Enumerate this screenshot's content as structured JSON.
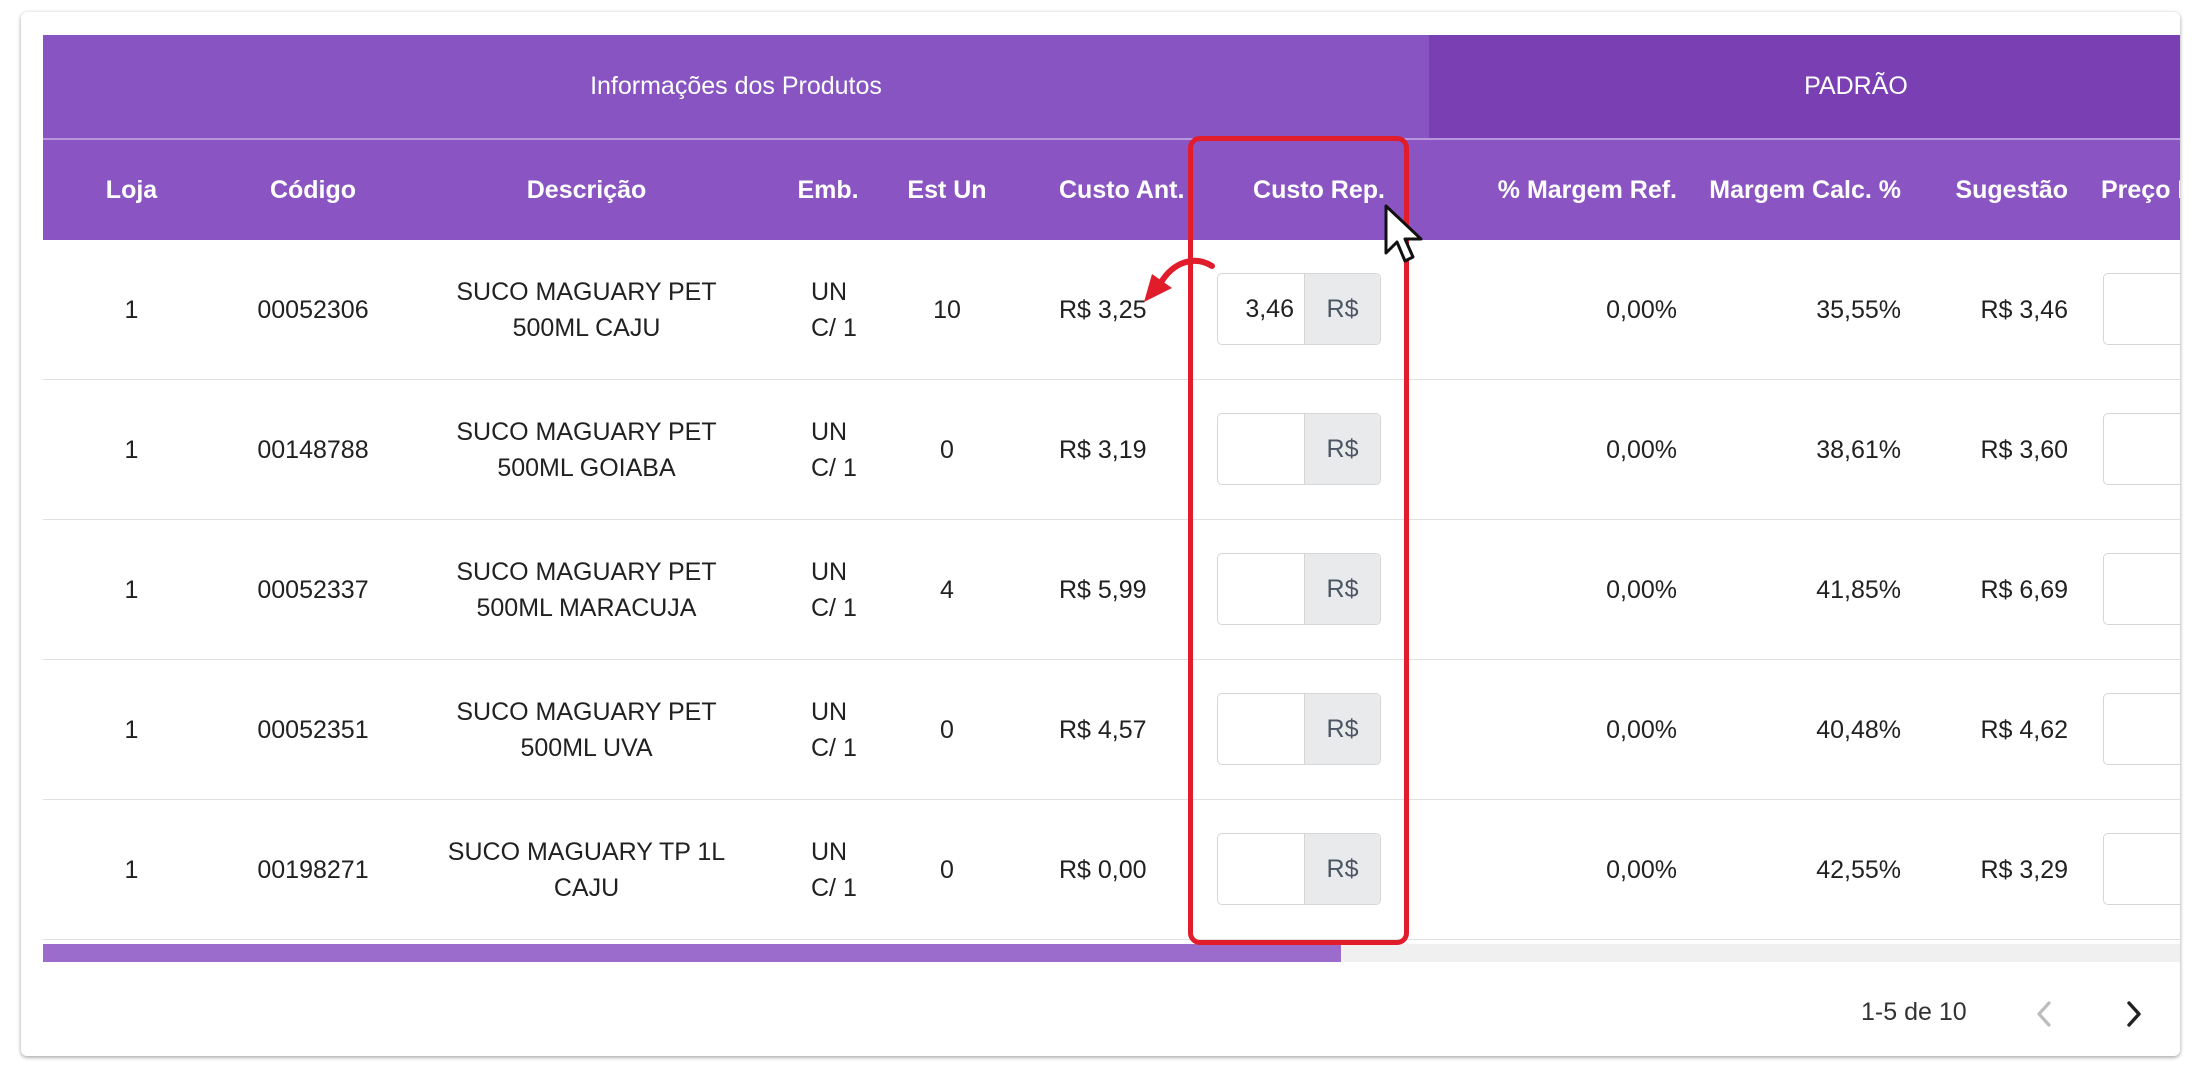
{
  "group_headers": {
    "product_info": "Informações dos Produtos",
    "padrao": "PADRÃO"
  },
  "columns": {
    "loja": "Loja",
    "codigo": "Código",
    "descricao": "Descrição",
    "emb": "Emb.",
    "est_un": "Est Un",
    "custo_ant": "Custo Ant.",
    "custo_rep": "Custo Rep.",
    "margem_ref": "% Margem Ref.",
    "margem_calc": "Margem Calc. %",
    "sugestao": "Sugestão",
    "preco": "Preço I"
  },
  "currency_addon": "R$",
  "rows": [
    {
      "loja": "1",
      "codigo": "00052306",
      "descricao_l1": "SUCO MAGUARY PET",
      "descricao_l2": "500ML CAJU",
      "emb_l1": "UN",
      "emb_l2": "C/ 1",
      "est_un": "10",
      "custo_ant": "R$ 3,25",
      "custo_rep": "3,46",
      "margem_ref": "0,00%",
      "margem_calc": "35,55%",
      "sugestao": "R$ 3,46"
    },
    {
      "loja": "1",
      "codigo": "00148788",
      "descricao_l1": "SUCO MAGUARY PET",
      "descricao_l2": "500ML GOIABA",
      "emb_l1": "UN",
      "emb_l2": "C/ 1",
      "est_un": "0",
      "custo_ant": "R$ 3,19",
      "custo_rep": "",
      "margem_ref": "0,00%",
      "margem_calc": "38,61%",
      "sugestao": "R$ 3,60"
    },
    {
      "loja": "1",
      "codigo": "00052337",
      "descricao_l1": "SUCO MAGUARY PET",
      "descricao_l2": "500ML MARACUJA",
      "emb_l1": "UN",
      "emb_l2": "C/ 1",
      "est_un": "4",
      "custo_ant": "R$ 5,99",
      "custo_rep": "",
      "margem_ref": "0,00%",
      "margem_calc": "41,85%",
      "sugestao": "R$ 6,69"
    },
    {
      "loja": "1",
      "codigo": "00052351",
      "descricao_l1": "SUCO MAGUARY PET",
      "descricao_l2": "500ML UVA",
      "emb_l1": "UN",
      "emb_l2": "C/ 1",
      "est_un": "0",
      "custo_ant": "R$ 4,57",
      "custo_rep": "",
      "margem_ref": "0,00%",
      "margem_calc": "40,48%",
      "sugestao": "R$ 4,62"
    },
    {
      "loja": "1",
      "codigo": "00198271",
      "descricao_l1": "SUCO MAGUARY TP 1L",
      "descricao_l2": "CAJU",
      "emb_l1": "UN",
      "emb_l2": "C/ 1",
      "est_un": "0",
      "custo_ant": "R$ 0,00",
      "custo_rep": "",
      "margem_ref": "0,00%",
      "margem_calc": "42,55%",
      "sugestao": "R$ 3,29"
    }
  ],
  "pagination": {
    "range_text": "1-5 de 10",
    "prev_icon": "chevron-left-icon",
    "next_icon": "chevron-right-icon"
  },
  "colors": {
    "header_purple": "#8a55c3",
    "padrao_purple": "#7a40b3",
    "highlight_red": "#e11d2b",
    "scroll_thumb": "#9c6ccc"
  }
}
